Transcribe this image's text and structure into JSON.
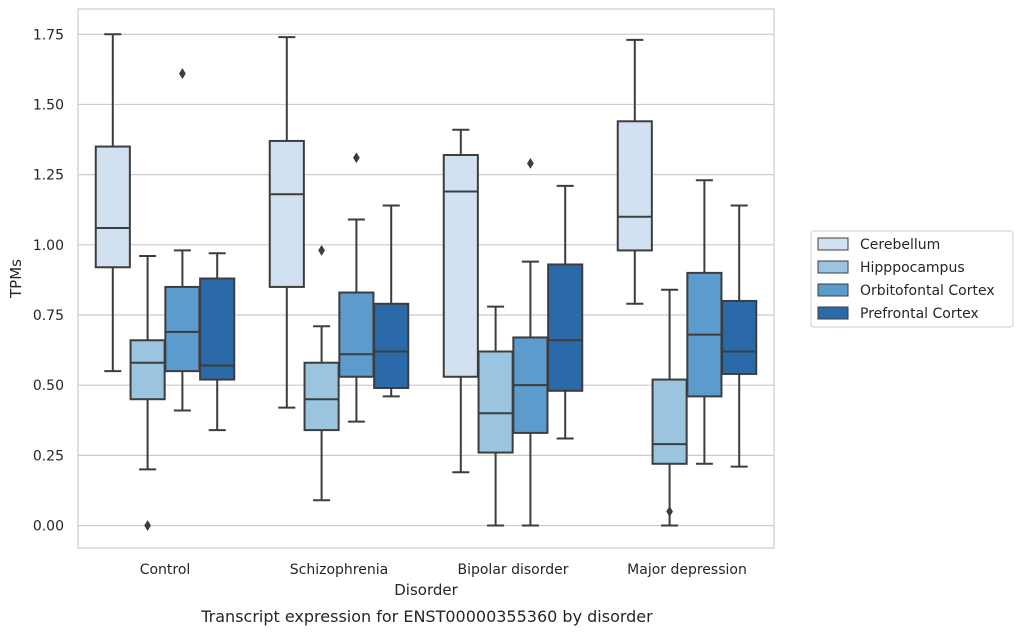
{
  "chart_data": {
    "type": "box",
    "caption": "Transcript expression for ENST00000355360 by disorder",
    "xlabel": "Disorder",
    "ylabel": "TPMs",
    "ylim": [
      -0.08,
      1.84
    ],
    "yticks": [
      "0.00",
      "0.25",
      "0.50",
      "0.75",
      "1.00",
      "1.25",
      "1.50",
      "1.75"
    ],
    "grid": true,
    "legend_position": "right",
    "categories": [
      "Control",
      "Schizophrenia",
      "Bipolar disorder",
      "Major depression"
    ],
    "series": [
      {
        "name": "Cerebellum",
        "color": "#d2e1f1",
        "boxes": [
          {
            "whisker_low": 0.55,
            "q1": 0.92,
            "median": 1.06,
            "q3": 1.35,
            "whisker_high": 1.75,
            "outliers": []
          },
          {
            "whisker_low": 0.42,
            "q1": 0.85,
            "median": 1.18,
            "q3": 1.37,
            "whisker_high": 1.74,
            "outliers": []
          },
          {
            "whisker_low": 0.19,
            "q1": 0.53,
            "median": 1.19,
            "q3": 1.32,
            "whisker_high": 1.41,
            "outliers": []
          },
          {
            "whisker_low": 0.79,
            "q1": 0.98,
            "median": 1.1,
            "q3": 1.44,
            "whisker_high": 1.73,
            "outliers": []
          }
        ]
      },
      {
        "name": "Hipppocampus",
        "color": "#9ac4df",
        "boxes": [
          {
            "whisker_low": 0.2,
            "q1": 0.45,
            "median": 0.58,
            "q3": 0.66,
            "whisker_high": 0.96,
            "outliers": [
              0.0
            ]
          },
          {
            "whisker_low": 0.09,
            "q1": 0.34,
            "median": 0.45,
            "q3": 0.58,
            "whisker_high": 0.71,
            "outliers": [
              0.98
            ]
          },
          {
            "whisker_low": 0.0,
            "q1": 0.26,
            "median": 0.4,
            "q3": 0.62,
            "whisker_high": 0.78,
            "outliers": []
          },
          {
            "whisker_low": 0.0,
            "q1": 0.22,
            "median": 0.29,
            "q3": 0.52,
            "whisker_high": 0.84,
            "outliers": [
              0.05
            ]
          }
        ]
      },
      {
        "name": "Orbitofontal Cortex",
        "color": "#5c9ccc",
        "boxes": [
          {
            "whisker_low": 0.41,
            "q1": 0.55,
            "median": 0.69,
            "q3": 0.85,
            "whisker_high": 0.98,
            "outliers": [
              1.61
            ]
          },
          {
            "whisker_low": 0.37,
            "q1": 0.53,
            "median": 0.61,
            "q3": 0.83,
            "whisker_high": 1.09,
            "outliers": [
              1.31
            ]
          },
          {
            "whisker_low": 0.0,
            "q1": 0.33,
            "median": 0.5,
            "q3": 0.67,
            "whisker_high": 0.94,
            "outliers": [
              1.29
            ]
          },
          {
            "whisker_low": 0.22,
            "q1": 0.46,
            "median": 0.68,
            "q3": 0.9,
            "whisker_high": 1.23,
            "outliers": []
          }
        ]
      },
      {
        "name": "Prefrontal Cortex",
        "color": "#2b6aa9",
        "boxes": [
          {
            "whisker_low": 0.34,
            "q1": 0.52,
            "median": 0.57,
            "q3": 0.88,
            "whisker_high": 0.97,
            "outliers": []
          },
          {
            "whisker_low": 0.46,
            "q1": 0.49,
            "median": 0.62,
            "q3": 0.79,
            "whisker_high": 1.14,
            "outliers": []
          },
          {
            "whisker_low": 0.31,
            "q1": 0.48,
            "median": 0.66,
            "q3": 0.93,
            "whisker_high": 1.21,
            "outliers": []
          },
          {
            "whisker_low": 0.21,
            "q1": 0.54,
            "median": 0.62,
            "q3": 0.8,
            "whisker_high": 1.14,
            "outliers": []
          }
        ]
      }
    ]
  }
}
